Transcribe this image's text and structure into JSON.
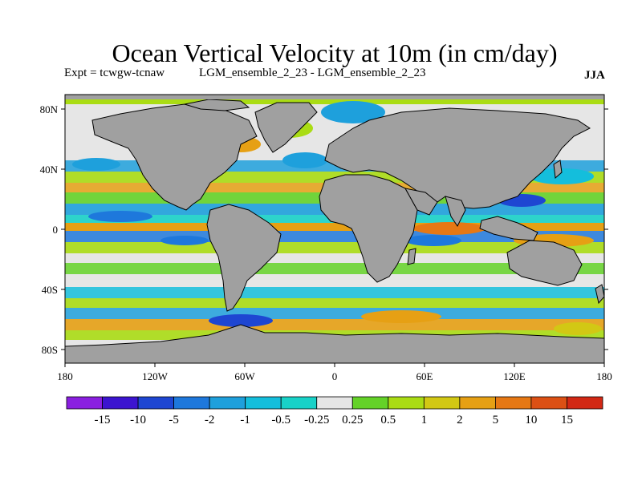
{
  "title": "Ocean Vertical Velocity at 10m (in cm/day)",
  "experiment_label": "Expt = tcwgw-tcnaw",
  "runs_label": "LGM_ensemble_2_23 - LGM_ensemble_2_23",
  "season": "JJA",
  "axes": {
    "x_ticks": [
      "180",
      "120W",
      "60W",
      "0",
      "60E",
      "120E",
      "180"
    ],
    "y_ticks": [
      "80N",
      "40N",
      "0",
      "40S",
      "80S"
    ]
  },
  "colors": {
    "land": "#a0a0a0",
    "ocean_neutral": "#e6e6e6",
    "coastline": "#000000"
  },
  "colorbar": {
    "labels": [
      "-15",
      "-10",
      "-5",
      "-2",
      "-1",
      "-0.5",
      "-0.25",
      "0.25",
      "0.5",
      "1",
      "2",
      "5",
      "10",
      "15"
    ],
    "colors": [
      "#8a1fe0",
      "#3c14d0",
      "#1e46d2",
      "#1e78dc",
      "#1ea0dc",
      "#14bedc",
      "#18d2c8",
      "#e6e6e6",
      "#64d228",
      "#aadc14",
      "#d2c814",
      "#e6a014",
      "#e67814",
      "#dc5014",
      "#d22814"
    ]
  }
}
